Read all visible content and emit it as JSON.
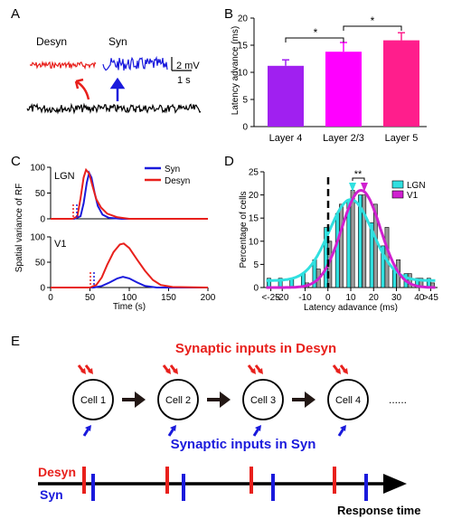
{
  "panel_labels": {
    "a": "A",
    "b": "B",
    "c": "C",
    "d": "D",
    "e": "E"
  },
  "colors": {
    "desyn": "#e8201c",
    "syn": "#1a1adc",
    "trace": "#000000",
    "layer4": "#a020f0",
    "layer23": "#ff00ff",
    "layer5": "#ff1e8c",
    "lgn_fit": "#30e0e0",
    "v1_fit": "#d020d0",
    "arrow": "#231815"
  },
  "panel_a": {
    "desyn_label": "Desyn",
    "syn_label": "Syn",
    "scale_mv": "2 mV",
    "scale_s": "1 s"
  },
  "panel_b": {
    "ylabel": "Latency advance (ms)",
    "star_1": "*",
    "star_2": "*",
    "chart_data": {
      "type": "bar",
      "categories": [
        "Layer 4",
        "Layer 2/3",
        "Layer 5"
      ],
      "values": [
        11.2,
        13.8,
        15.9
      ],
      "errors": [
        1.1,
        1.7,
        1.4
      ],
      "ylim": [
        0,
        20
      ],
      "yticks": [
        "0",
        "5",
        "10",
        "15",
        "20"
      ]
    }
  },
  "panel_c": {
    "ylabel": "Spatial variance of RF",
    "xlabel": "Time (s)",
    "legend_syn": "Syn",
    "legend_desyn": "Desyn",
    "top": {
      "label": "LGN",
      "yticks": [
        "0",
        "50",
        "100"
      ],
      "chart_data": {
        "type": "line",
        "xlim": [
          0,
          200
        ],
        "ylim": [
          0,
          100
        ],
        "series": [
          {
            "name": "Syn",
            "points": [
              [
                0,
                0
              ],
              [
                30,
                0
              ],
              [
                38,
                5
              ],
              [
                42,
                30
              ],
              [
                46,
                70
              ],
              [
                49,
                89
              ],
              [
                52,
                80
              ],
              [
                56,
                50
              ],
              [
                60,
                25
              ],
              [
                66,
                8
              ],
              [
                74,
                2
              ],
              [
                90,
                0
              ],
              [
                200,
                0
              ]
            ]
          },
          {
            "name": "Desyn",
            "points": [
              [
                0,
                0
              ],
              [
                28,
                0
              ],
              [
                34,
                5
              ],
              [
                38,
                40
              ],
              [
                42,
                80
              ],
              [
                45,
                95
              ],
              [
                49,
                88
              ],
              [
                53,
                65
              ],
              [
                58,
                38
              ],
              [
                64,
                22
              ],
              [
                72,
                10
              ],
              [
                85,
                3
              ],
              [
                100,
                0
              ],
              [
                200,
                0
              ]
            ]
          }
        ]
      }
    },
    "bottom": {
      "label": "V1",
      "yticks": [
        "0",
        "50",
        "100"
      ],
      "xticks": [
        "0",
        "50",
        "100",
        "150",
        "200"
      ],
      "chart_data": {
        "type": "line",
        "xlim": [
          0,
          200
        ],
        "ylim": [
          0,
          100
        ],
        "series": [
          {
            "name": "Syn",
            "points": [
              [
                0,
                0
              ],
              [
                55,
                0
              ],
              [
                65,
                3
              ],
              [
                75,
                10
              ],
              [
                85,
                18
              ],
              [
                92,
                21
              ],
              [
                100,
                18
              ],
              [
                110,
                10
              ],
              [
                120,
                3
              ],
              [
                135,
                0
              ],
              [
                200,
                0
              ]
            ]
          },
          {
            "name": "Desyn",
            "points": [
              [
                0,
                0
              ],
              [
                50,
                0
              ],
              [
                58,
                5
              ],
              [
                65,
                20
              ],
              [
                72,
                45
              ],
              [
                80,
                70
              ],
              [
                88,
                85
              ],
              [
                93,
                87
              ],
              [
                100,
                78
              ],
              [
                110,
                55
              ],
              [
                120,
                33
              ],
              [
                130,
                15
              ],
              [
                140,
                5
              ],
              [
                155,
                1
              ],
              [
                200,
                0
              ]
            ]
          }
        ]
      }
    }
  },
  "panel_d": {
    "ylabel": "Percentage of cells",
    "xlabel": "Latency adavance (ms)",
    "sig": "**",
    "legend_lgn": "LGN",
    "legend_v1": "V1",
    "yticks": [
      "0",
      "5",
      "10",
      "15",
      "20",
      "25"
    ],
    "xticks": [
      "<-25",
      "-20",
      "-10",
      "0",
      "10",
      "20",
      "30",
      "40",
      ">45"
    ],
    "chart_data": {
      "type": "bar",
      "x_centers": [
        -25,
        -20,
        -15,
        -10,
        -5,
        0,
        5,
        10,
        15,
        20,
        25,
        30,
        35,
        40,
        45
      ],
      "series": [
        {
          "name": "LGN",
          "values": [
            2,
            2,
            2,
            3,
            6,
            13,
            16,
            19,
            20,
            14,
            9,
            4,
            3,
            2,
            2
          ]
        },
        {
          "name": "V1",
          "values": [
            0,
            0,
            0,
            1,
            4,
            10,
            18,
            21,
            20,
            18,
            13,
            6,
            3,
            2,
            1
          ]
        }
      ],
      "fits": [
        {
          "name": "LGN",
          "peak": 19,
          "mean": 10,
          "sd": 9.5,
          "baseline": 1.5
        },
        {
          "name": "V1",
          "peak": 21,
          "mean": 14.5,
          "sd": 8.5,
          "baseline": 0
        }
      ],
      "xlim": [
        -28,
        48
      ],
      "ylim": [
        0,
        25
      ]
    }
  },
  "panel_e": {
    "title_desyn": "Synaptic inputs in Desyn",
    "title_syn": "Synaptic inputs in Syn",
    "cells": [
      "Cell 1",
      "Cell 2",
      "Cell 3",
      "Cell 4"
    ],
    "ellipsis": "......",
    "row_desyn": "Desyn",
    "row_syn": "Syn",
    "axis_label": "Response time"
  }
}
